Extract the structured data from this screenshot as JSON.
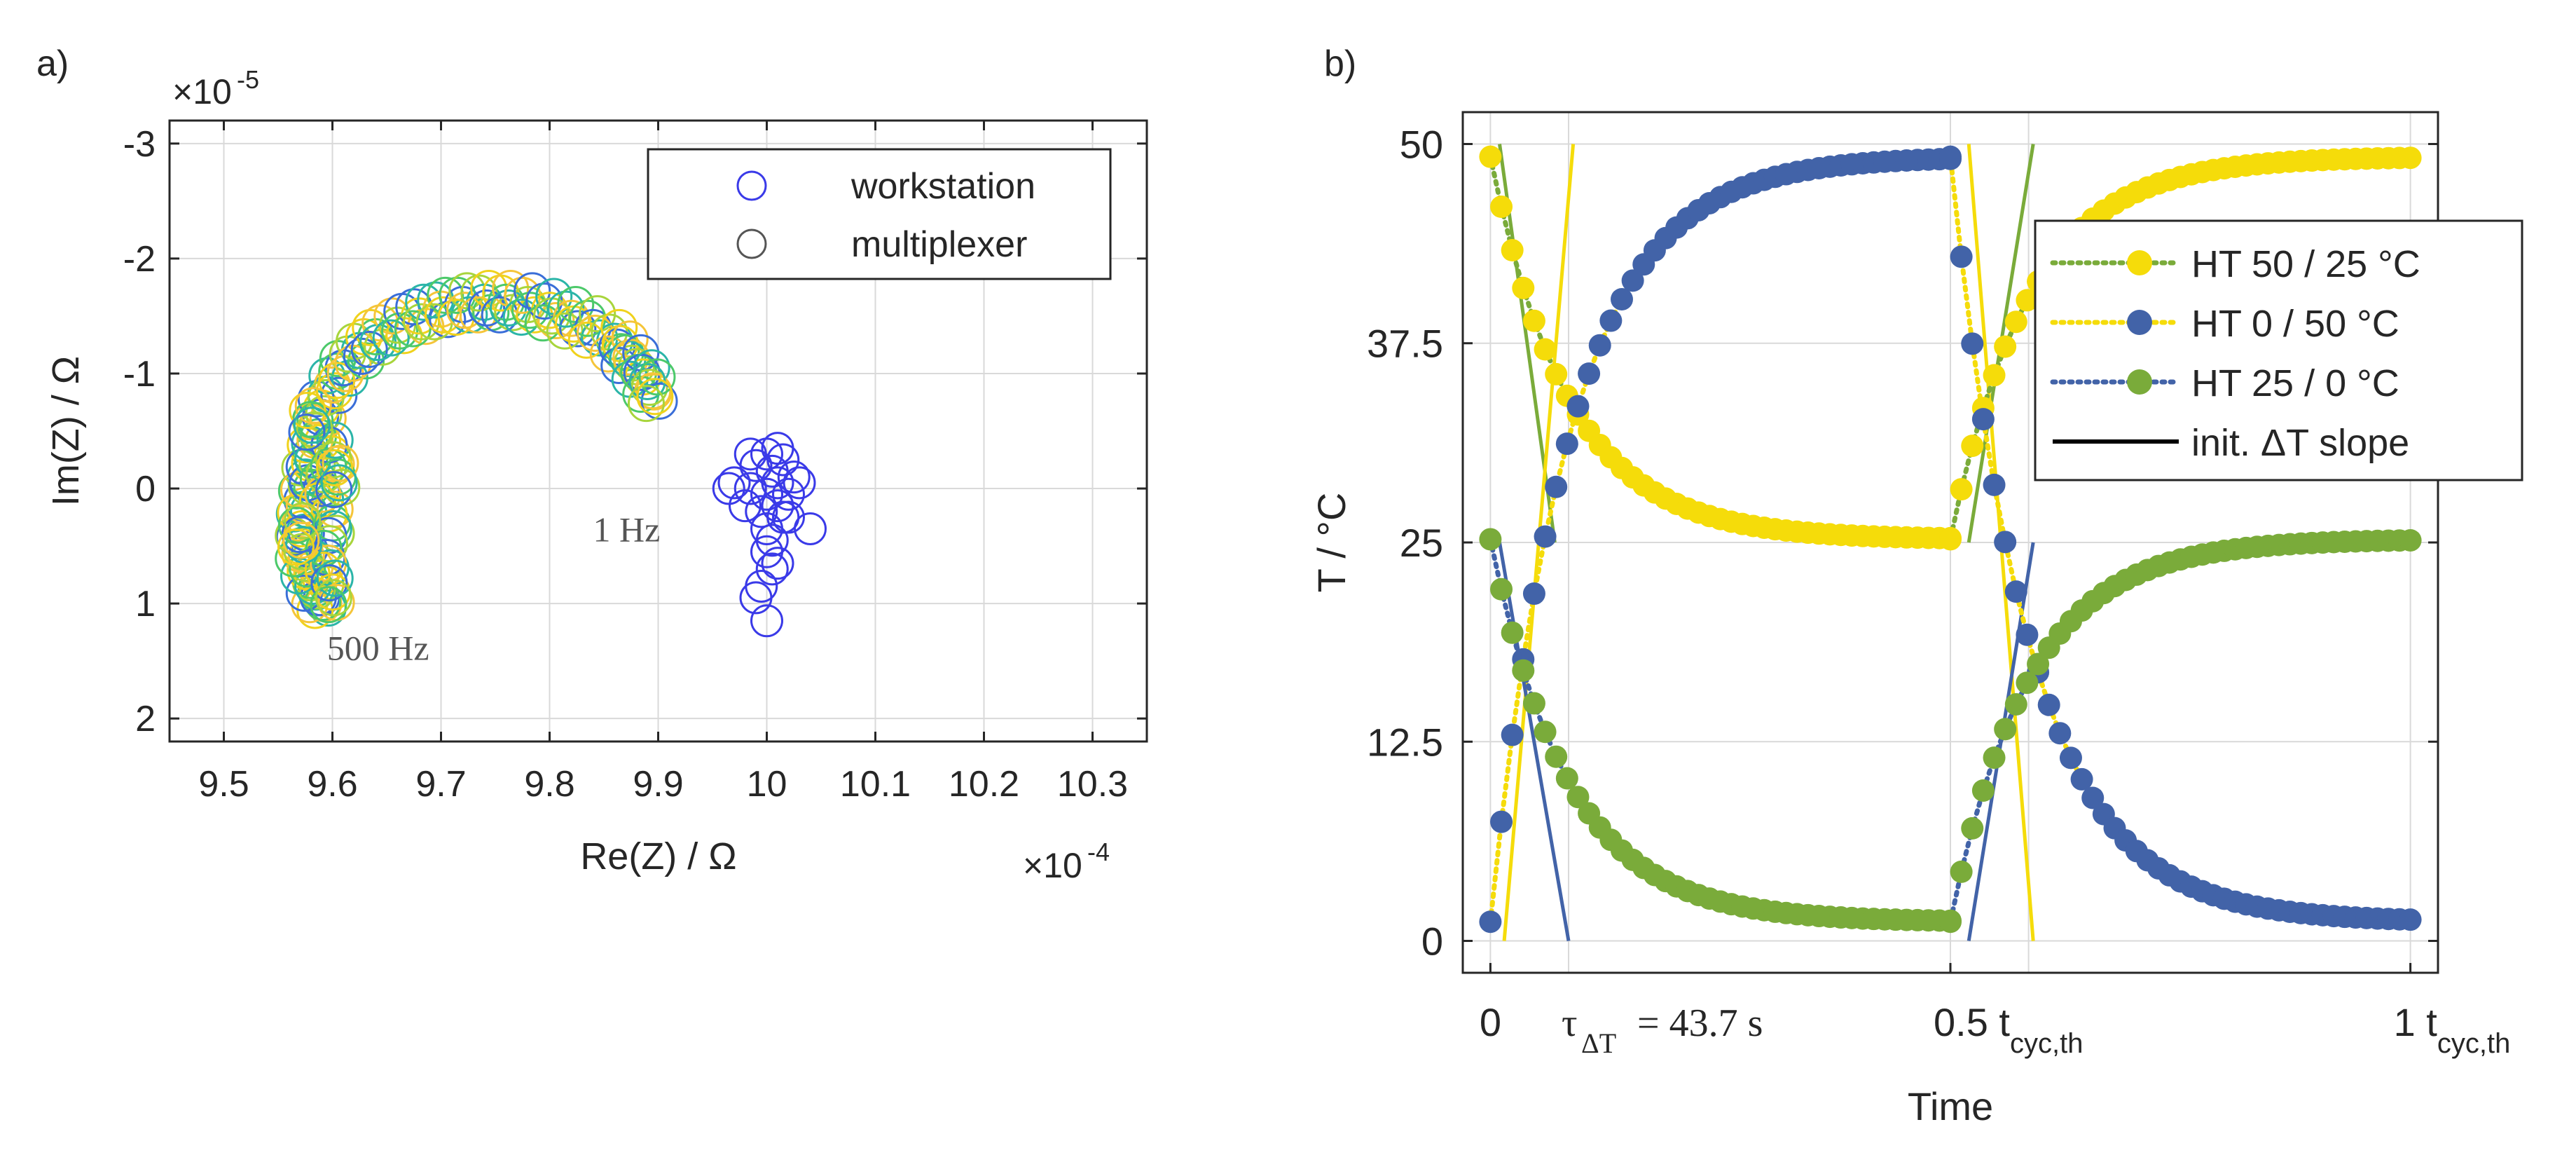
{
  "panels": {
    "a": {
      "label": "a)"
    },
    "b": {
      "label": "b)"
    }
  },
  "chart_data": [
    {
      "type": "scatter",
      "panel": "a",
      "title": "",
      "xlabel": "Re(Z)   /   Ω",
      "ylabel": "Im(Z)   /   Ω",
      "x_exponent_label": "×10",
      "x_exponent": "-4",
      "y_exponent_label": "×10",
      "y_exponent": "-5",
      "xlim": [
        9.45,
        10.35
      ],
      "ylim": [
        -3.2,
        2.2
      ],
      "y_reversed": true,
      "xticks": [
        9.5,
        9.6,
        9.7,
        9.8,
        9.9,
        10,
        10.1,
        10.2,
        10.3
      ],
      "xtick_labels": [
        "9.5",
        "9.6",
        "9.7",
        "9.8",
        "9.9",
        "10",
        "10.1",
        "10.2",
        "10.3"
      ],
      "yticks": [
        -3,
        -2,
        -1,
        0,
        1,
        2
      ],
      "ytick_labels": [
        "-3",
        "-2",
        "-1",
        "0",
        "1",
        "2"
      ],
      "grid": true,
      "legend": {
        "location": "top-right",
        "entries": [
          {
            "label": "workstation",
            "color": "#3a3ae8"
          },
          {
            "label": "multiplexer",
            "color": "#555555"
          }
        ]
      },
      "annotations": [
        {
          "text": "1 Hz",
          "x": 9.84,
          "y": 0.35
        },
        {
          "text": "500 Hz",
          "x": 9.595,
          "y": 1.38
        }
      ],
      "arc_colors": [
        "#3a6ed8",
        "#2bb5a8",
        "#4cc96a",
        "#a8d53c",
        "#f0d21c",
        "#f5c53a"
      ],
      "series": [
        {
          "name": "multiplexer",
          "arc_points": [
            [
              9.59,
              0.95
            ],
            [
              9.585,
              0.9
            ],
            [
              9.58,
              0.8
            ],
            [
              9.575,
              0.65
            ],
            [
              9.57,
              0.5
            ],
            [
              9.57,
              0.3
            ],
            [
              9.572,
              0.1
            ],
            [
              9.575,
              -0.1
            ],
            [
              9.58,
              -0.3
            ],
            [
              9.585,
              -0.5
            ],
            [
              9.59,
              -0.7
            ],
            [
              9.6,
              -0.9
            ],
            [
              9.61,
              -1.05
            ],
            [
              9.625,
              -1.2
            ],
            [
              9.64,
              -1.32
            ],
            [
              9.66,
              -1.42
            ],
            [
              9.68,
              -1.5
            ],
            [
              9.7,
              -1.56
            ],
            [
              9.72,
              -1.6
            ],
            [
              9.74,
              -1.62
            ],
            [
              9.76,
              -1.62
            ],
            [
              9.78,
              -1.6
            ],
            [
              9.8,
              -1.55
            ],
            [
              9.82,
              -1.48
            ],
            [
              9.84,
              -1.4
            ],
            [
              9.86,
              -1.28
            ],
            [
              9.87,
              -1.18
            ],
            [
              9.88,
              -1.06
            ],
            [
              9.89,
              -0.93
            ],
            [
              9.895,
              -0.85
            ]
          ],
          "cluster_points": [
            [
              9.59,
              0.0
            ],
            [
              9.6,
              0.3
            ],
            [
              9.6,
              -0.3
            ],
            [
              9.595,
              0.6
            ],
            [
              9.58,
              -0.6
            ],
            [
              9.6,
              0.9
            ],
            [
              9.57,
              0.4
            ],
            [
              9.605,
              -0.1
            ]
          ]
        },
        {
          "name": "workstation",
          "color": "#3a3ae8",
          "points": [
            [
              9.97,
              -0.05
            ],
            [
              9.985,
              0.0
            ],
            [
              9.99,
              -0.2
            ],
            [
              10.0,
              0.05
            ],
            [
              10.005,
              -0.15
            ],
            [
              10.01,
              -0.05
            ],
            [
              10.015,
              -0.25
            ],
            [
              10.02,
              0.05
            ],
            [
              10.025,
              -0.1
            ],
            [
              10.03,
              -0.05
            ],
            [
              10.0,
              -0.3
            ],
            [
              10.01,
              0.15
            ],
            [
              9.995,
              0.2
            ],
            [
              10.02,
              0.25
            ],
            [
              10.04,
              0.35
            ],
            [
              9.965,
              0.0
            ],
            [
              9.98,
              0.15
            ],
            [
              10.01,
              -0.35
            ],
            [
              10.005,
              0.45
            ],
            [
              10.0,
              0.55
            ],
            [
              10.01,
              0.65
            ],
            [
              10.005,
              0.7
            ],
            [
              9.995,
              0.85
            ],
            [
              9.99,
              0.95
            ],
            [
              10.0,
              1.15
            ],
            [
              9.985,
              -0.3
            ],
            [
              10.015,
              0.25
            ],
            [
              10.0,
              0.35
            ]
          ]
        }
      ]
    },
    {
      "type": "line",
      "panel": "b",
      "title": "",
      "xlabel": "Time",
      "ylabel": "T   /   °C",
      "xlim": [
        -0.03,
        1.03
      ],
      "ylim": [
        -2,
        52
      ],
      "yticks": [
        0,
        12.5,
        25,
        37.5,
        50
      ],
      "ytick_labels": [
        "0",
        "12.5",
        "25",
        "37.5",
        "50"
      ],
      "xticks": [
        0,
        0.5,
        1
      ],
      "xtick_labels": [
        {
          "main": "0",
          "sub": ""
        },
        {
          "main": "0.5 t",
          "sub": "cyc,th"
        },
        {
          "main": "1 t",
          "sub": "cyc,th"
        }
      ],
      "vertical_lines": [
        0.085,
        0.585
      ],
      "tau_label": {
        "prefix": "τ",
        "sub": "ΔT",
        "suffix": "= 43.7 s",
        "x": 0.085
      },
      "grid": true,
      "legend": {
        "location": "top-right",
        "entries": [
          {
            "label": "HT 50 / 25 °C",
            "color": "#f5dc0a",
            "line_color": "#7aab3a"
          },
          {
            "label": "HT   0 / 50 °C",
            "color": "#4263a8",
            "line_color": "#f5dc0a"
          },
          {
            "label": "HT 25 /   0 °C",
            "color": "#7aab3a",
            "line_color": "#4263a8"
          },
          {
            "label": "init. ΔT slope",
            "color": "#000000",
            "line_color": "#000000"
          }
        ]
      },
      "series": [
        {
          "name": "HT 50 / 25 °C",
          "marker_color": "#f5dc0a",
          "line_color": "#7aab3a",
          "segments": [
            {
              "t_start": 0.0,
              "t_end": 0.5,
              "from": 49.2,
              "to": 25.2,
              "tau": 0.085
            },
            {
              "t_start": 0.5,
              "t_end": 1.0,
              "from": 25.2,
              "to": 49.2,
              "tau": 0.085
            }
          ]
        },
        {
          "name": "HT   0 / 50 °C",
          "marker_color": "#4263a8",
          "line_color": "#f5dc0a",
          "segments": [
            {
              "t_start": 0.0,
              "t_end": 0.5,
              "from": 1.2,
              "to": 49.2,
              "tau": 0.085
            },
            {
              "t_start": 0.5,
              "t_end": 1.0,
              "from": 49.2,
              "to": 1.2,
              "tau": 0.085
            }
          ]
        },
        {
          "name": "HT 25 /   0 °C",
          "marker_color": "#7aab3a",
          "line_color": "#4263a8",
          "segments": [
            {
              "t_start": 0.0,
              "t_end": 0.5,
              "from": 25.2,
              "to": 1.2,
              "tau": 0.085
            },
            {
              "t_start": 0.5,
              "t_end": 1.0,
              "from": 1.2,
              "to": 25.2,
              "tau": 0.085
            }
          ]
        }
      ],
      "slope_lines": [
        {
          "color": "#7aab3a",
          "from": [
            0.01,
            50
          ],
          "to": [
            0.07,
            25
          ]
        },
        {
          "color": "#f5dc0a",
          "from": [
            0.015,
            0
          ],
          "to": [
            0.09,
            50
          ]
        },
        {
          "color": "#4263a8",
          "from": [
            0.01,
            25
          ],
          "to": [
            0.085,
            0
          ]
        },
        {
          "color": "#7aab3a",
          "from": [
            0.52,
            25
          ],
          "to": [
            0.59,
            50
          ]
        },
        {
          "color": "#f5dc0a",
          "from": [
            0.52,
            50
          ],
          "to": [
            0.59,
            0
          ]
        },
        {
          "color": "#4263a8",
          "from": [
            0.52,
            0
          ],
          "to": [
            0.59,
            25
          ]
        }
      ]
    }
  ]
}
